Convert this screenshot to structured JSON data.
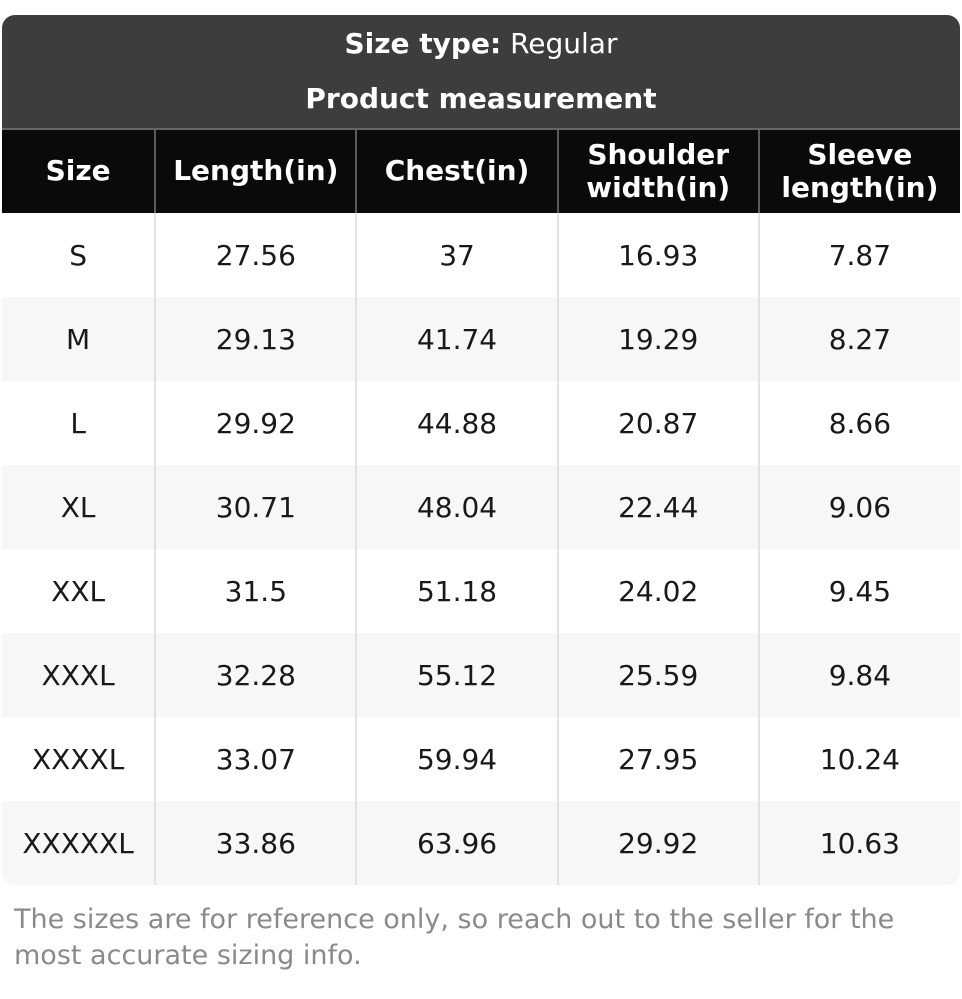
{
  "banner": {
    "size_type_label": "Size type:",
    "size_type_value": "Regular",
    "title": "Product measurement"
  },
  "table": {
    "headers": [
      "Size",
      "Length(in)",
      "Chest(in)",
      "Shoulder width(in)",
      "Sleeve length(in)"
    ],
    "rows": [
      {
        "size": "S",
        "length": "27.56",
        "chest": "37",
        "shoulder": "16.93",
        "sleeve": "7.87"
      },
      {
        "size": "M",
        "length": "29.13",
        "chest": "41.74",
        "shoulder": "19.29",
        "sleeve": "8.27"
      },
      {
        "size": "L",
        "length": "29.92",
        "chest": "44.88",
        "shoulder": "20.87",
        "sleeve": "8.66"
      },
      {
        "size": "XL",
        "length": "30.71",
        "chest": "48.04",
        "shoulder": "22.44",
        "sleeve": "9.06"
      },
      {
        "size": "XXL",
        "length": "31.5",
        "chest": "51.18",
        "shoulder": "24.02",
        "sleeve": "9.45"
      },
      {
        "size": "XXXL",
        "length": "32.28",
        "chest": "55.12",
        "shoulder": "25.59",
        "sleeve": "9.84"
      },
      {
        "size": "XXXXL",
        "length": "33.07",
        "chest": "59.94",
        "shoulder": "27.95",
        "sleeve": "10.24"
      },
      {
        "size": "XXXXXL",
        "length": "33.86",
        "chest": "63.96",
        "shoulder": "29.92",
        "sleeve": "10.63"
      }
    ]
  },
  "footer": {
    "note": "The sizes are for reference only, so reach out to the seller for the most accurate sizing info."
  },
  "colors": {
    "banner_bg": "#3d3d3d",
    "header_bg": "#0a0a0a",
    "alt_row_bg": "#f7f7f7",
    "divider": "#e2e2e2",
    "note_text": "#8a8a8a"
  }
}
